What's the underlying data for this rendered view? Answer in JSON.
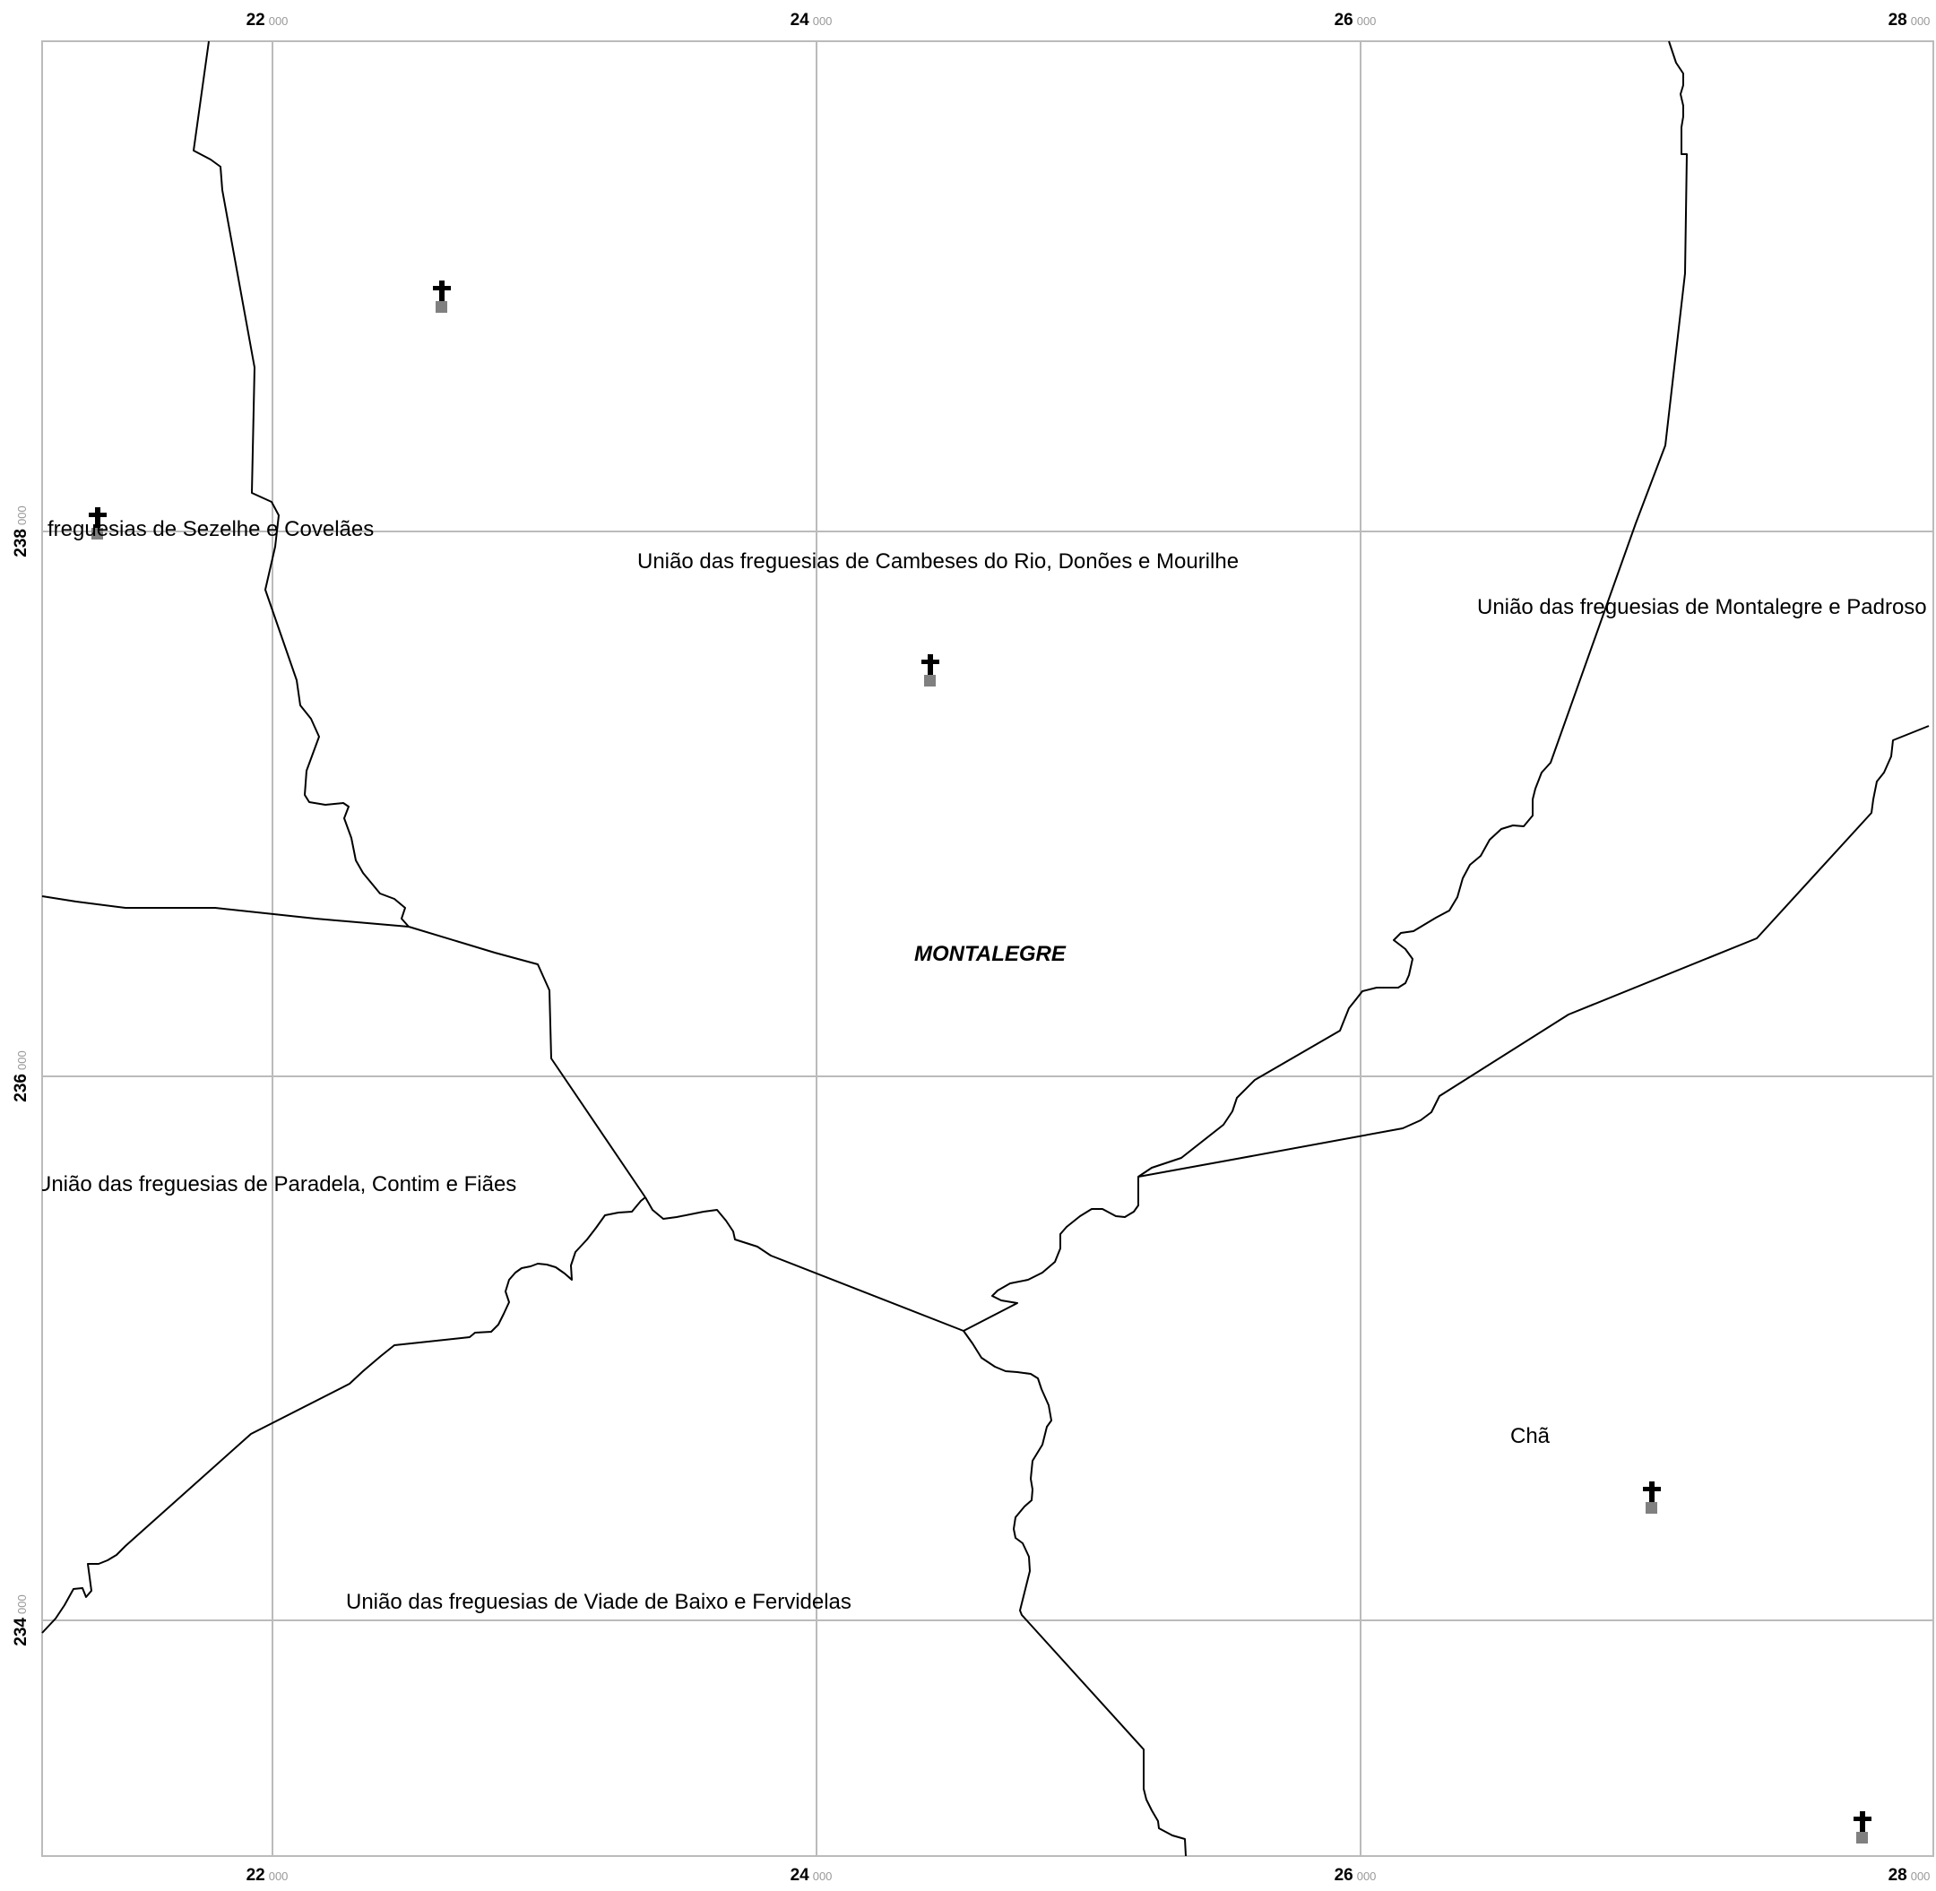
{
  "map": {
    "municipality_label": "MONTALEGRE",
    "parish_labels": [
      "freguesias de Sezelhe e Covelães",
      "União das freguesias de Cambeses do Rio, Donões e Mourilhe",
      "União das freguesias de Montalegre e Padroso",
      "União das freguesias de Paradela, Contim e Fiães",
      "Chã",
      "União das freguesias de Viade de Baixo e Fervidelas"
    ],
    "grid": {
      "x_ticks": [
        {
          "major": "22",
          "minor": "000"
        },
        {
          "major": "24",
          "minor": "000"
        },
        {
          "major": "26",
          "minor": "000"
        },
        {
          "major": "28",
          "minor": "000"
        }
      ],
      "y_ticks": [
        {
          "major": "238",
          "minor": "000"
        },
        {
          "major": "236",
          "minor": "000"
        },
        {
          "major": "234",
          "minor": "000"
        }
      ],
      "color": "#bbbbbb"
    },
    "symbols": {
      "church_icon": "latin-cross-icon",
      "marker_icon": "grey-square-marker-icon",
      "church_color": "#000000",
      "marker_color": "#808080",
      "count": 5
    },
    "boundary_color": "#000000"
  }
}
